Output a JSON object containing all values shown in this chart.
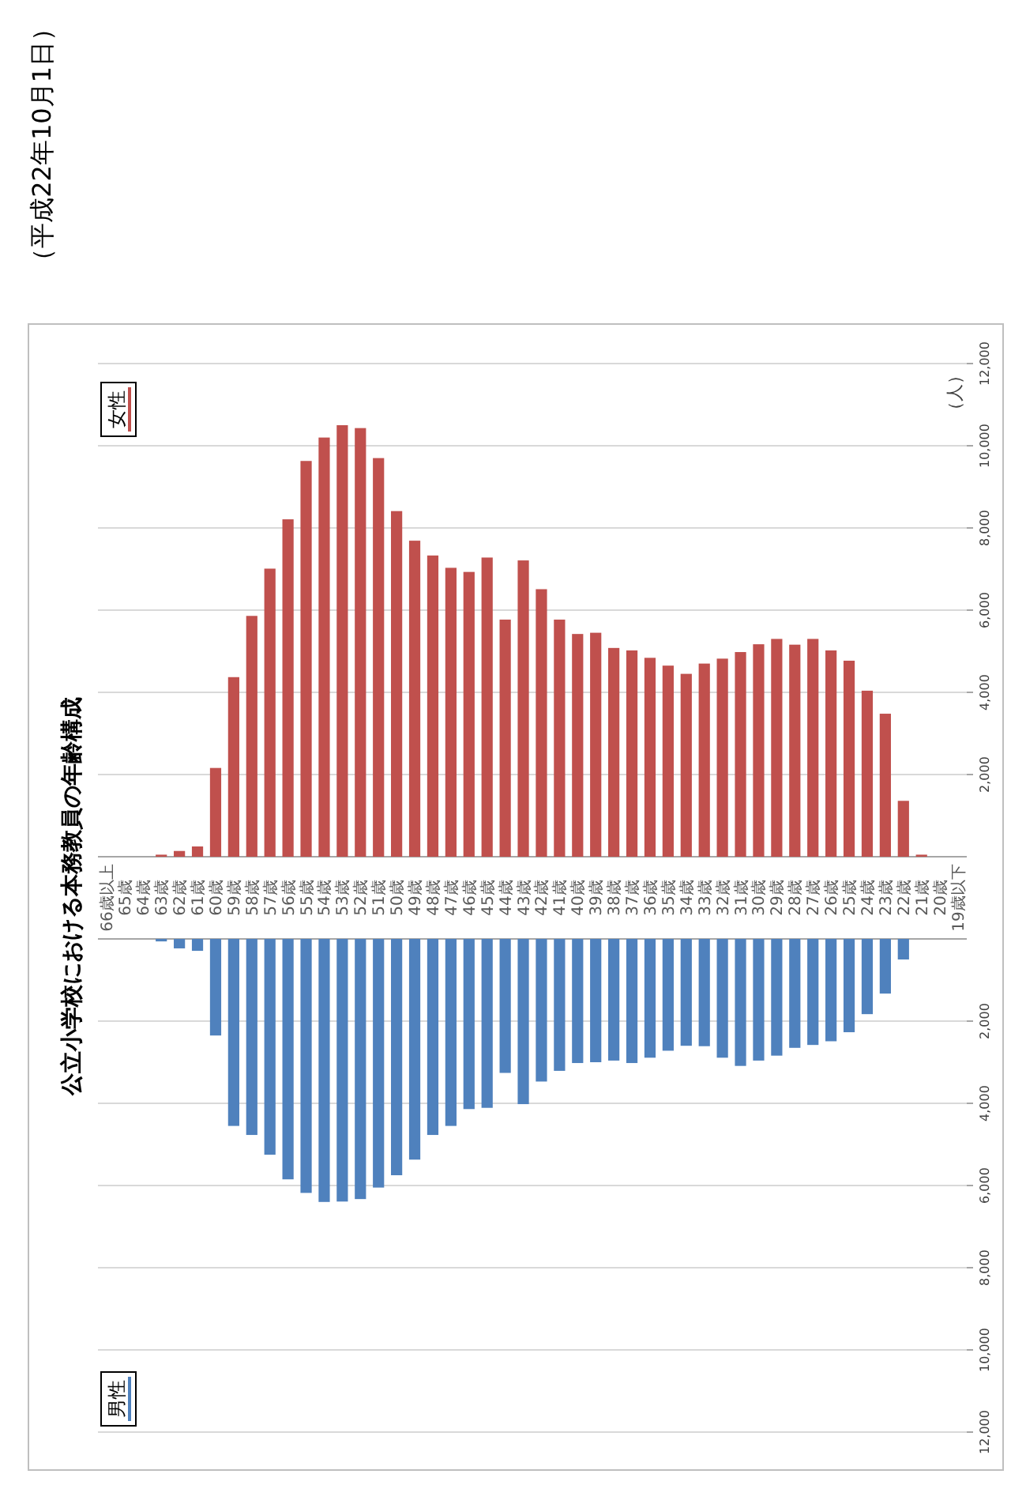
{
  "chart_data": [
    {
      "type": "bar",
      "title": "公立小学校における本務教員の年齢構成",
      "annotations": [
        "（平成22年10月1日）"
      ],
      "ylabel": "（人）",
      "categories": [
        "66歳以上",
        "65歳",
        "64歳",
        "63歳",
        "62歳",
        "61歳",
        "60歳",
        "59歳",
        "58歳",
        "57歳",
        "56歳",
        "55歳",
        "54歳",
        "53歳",
        "52歳",
        "51歳",
        "50歳",
        "49歳",
        "48歳",
        "47歳",
        "46歳",
        "45歳",
        "44歳",
        "43歳",
        "42歳",
        "41歳",
        "40歳",
        "39歳",
        "38歳",
        "37歳",
        "36歳",
        "35歳",
        "34歳",
        "33歳",
        "32歳",
        "31歳",
        "30歳",
        "29歳",
        "28歳",
        "27歳",
        "26歳",
        "25歳",
        "24歳",
        "23歳",
        "22歳",
        "21歳",
        "20歳",
        "19歳以下"
      ],
      "series": [
        {
          "name": "女性",
          "color": "#c0504d",
          "values": [
            0,
            0,
            0,
            50,
            140,
            250,
            2160,
            4370,
            5860,
            7010,
            8210,
            9630,
            10200,
            10500,
            10430,
            9700,
            8410,
            7690,
            7330,
            7030,
            6930,
            7280,
            5770,
            7210,
            6510,
            5770,
            5420,
            5450,
            5080,
            5020,
            4840,
            4650,
            4450,
            4700,
            4820,
            4980,
            5170,
            5300,
            5160,
            5300,
            5020,
            4770,
            4040,
            3480,
            1360,
            50,
            0,
            0
          ]
        }
      ],
      "ylim": [
        0,
        12000
      ],
      "yticks": [
        {
          "value": 2000,
          "label": "2,000"
        },
        {
          "value": 4000,
          "label": "4,000"
        },
        {
          "value": 6000,
          "label": "6,000"
        },
        {
          "value": 8000,
          "label": "8,000"
        },
        {
          "value": 10000,
          "label": "10,000"
        },
        {
          "value": 12000,
          "label": "12,000"
        }
      ],
      "grid": "y",
      "legend": "top left"
    },
    {
      "type": "bar",
      "categories": [
        null,
        null,
        null,
        null,
        null,
        null,
        null,
        null,
        null,
        null,
        null,
        null,
        null,
        null,
        null,
        null,
        null,
        null,
        null,
        null,
        null,
        null,
        null,
        null,
        null,
        null,
        null,
        null,
        null,
        null,
        null,
        null,
        null,
        null,
        null,
        null,
        null,
        null,
        null,
        null,
        null,
        null,
        null,
        null,
        null,
        null,
        null,
        null
      ],
      "series": [
        {
          "name": "男性",
          "color": "#4f81bd",
          "values": [
            0,
            0,
            0,
            60,
            230,
            290,
            2350,
            4550,
            4770,
            5250,
            5850,
            6180,
            6400,
            6390,
            6330,
            6050,
            5750,
            5370,
            4770,
            4550,
            4140,
            4110,
            3260,
            4020,
            3470,
            3210,
            3020,
            3000,
            2960,
            3020,
            2890,
            2720,
            2600,
            2610,
            2890,
            3090,
            2960,
            2840,
            2650,
            2580,
            2490,
            2270,
            1830,
            1330,
            500,
            0,
            0,
            0
          ]
        }
      ],
      "ylim": [
        12000,
        0
      ],
      "yticks": [
        {
          "value": 2000,
          "label": "2,000"
        },
        {
          "value": 4000,
          "label": "4,000"
        },
        {
          "value": 6000,
          "label": "6,000"
        },
        {
          "value": 8000,
          "label": "8,000"
        },
        {
          "value": 10000,
          "label": "10,000"
        },
        {
          "value": 12000,
          "label": "12,000"
        }
      ],
      "grid": "y",
      "legend": "bottom left",
      "tick_labels": "y"
    }
  ]
}
